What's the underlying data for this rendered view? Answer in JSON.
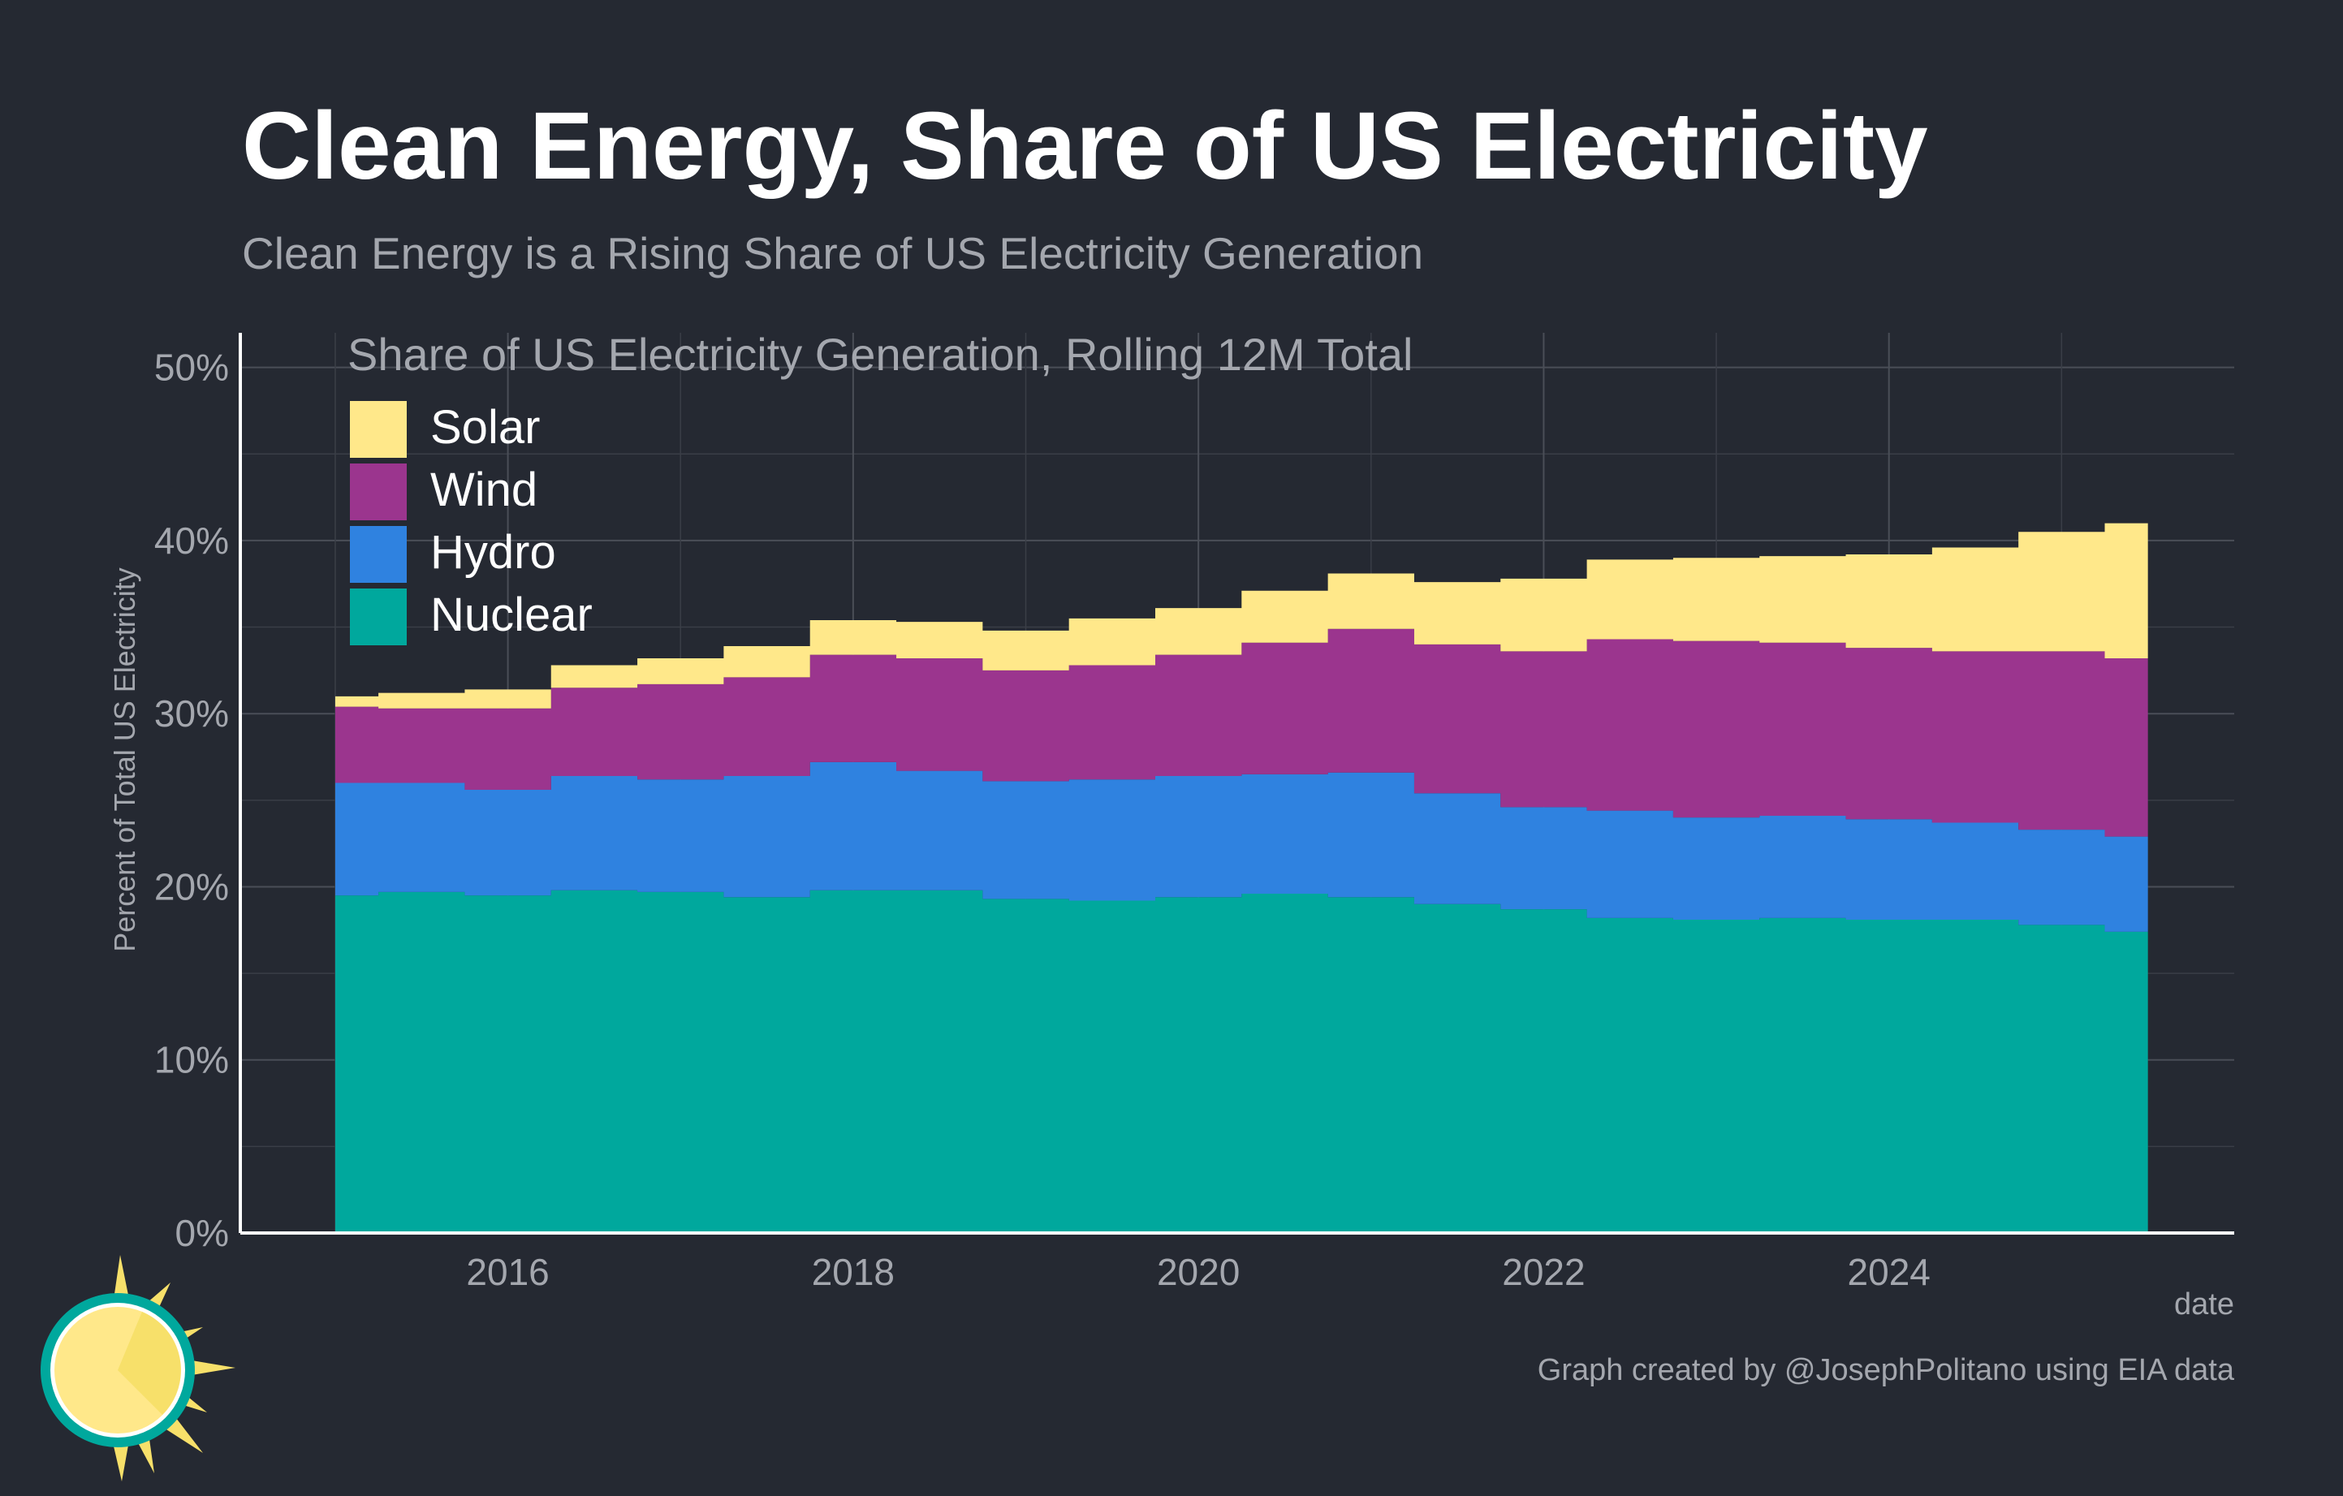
{
  "header": {
    "title": "Clean Energy, Share of US Electricity",
    "subtitle": "Clean Energy is a Rising Share of US Electricity Generation"
  },
  "footer": {
    "caption": "Graph created by @JosephPolitano using EIA data",
    "logo_icon": "sun-logo-icon"
  },
  "chart_data": {
    "type": "area",
    "stacked": true,
    "title": "Share of US Electricity Generation, Rolling 12M Total",
    "xlabel": "date",
    "ylabel": "Percent of Total US Electricity",
    "ylim": [
      0,
      52
    ],
    "xlim": [
      2014.45,
      2026.0
    ],
    "y_ticks": [
      0,
      10,
      20,
      30,
      40,
      50
    ],
    "y_tick_labels": [
      "0%",
      "10%",
      "20%",
      "30%",
      "40%",
      "50%"
    ],
    "x_ticks": [
      2016,
      2018,
      2020,
      2022,
      2024
    ],
    "x_tick_labels": [
      "2016",
      "2018",
      "2020",
      "2022",
      "2024"
    ],
    "grid": true,
    "legend_position": "top-left",
    "x": [
      2015.0,
      2015.5,
      2016.0,
      2016.5,
      2017.0,
      2017.5,
      2018.0,
      2018.5,
      2019.0,
      2019.5,
      2020.0,
      2020.5,
      2021.0,
      2021.5,
      2022.0,
      2022.5,
      2023.0,
      2023.5,
      2024.0,
      2024.5,
      2025.0,
      2025.5
    ],
    "series": [
      {
        "name": "Nuclear",
        "color": "#00a89d",
        "values": [
          19.5,
          19.7,
          19.5,
          19.8,
          19.7,
          19.4,
          19.8,
          19.8,
          19.3,
          19.2,
          19.4,
          19.6,
          19.4,
          19.0,
          18.7,
          18.2,
          18.1,
          18.2,
          18.1,
          18.1,
          17.8,
          17.4
        ]
      },
      {
        "name": "Hydro",
        "color": "#2f82e0",
        "values": [
          6.5,
          6.3,
          6.1,
          6.6,
          6.5,
          7.0,
          7.4,
          6.9,
          6.8,
          7.0,
          7.0,
          6.9,
          7.2,
          6.4,
          5.9,
          6.2,
          5.9,
          5.9,
          5.8,
          5.6,
          5.5,
          5.5
        ]
      },
      {
        "name": "Wind",
        "color": "#9b358e",
        "values": [
          4.4,
          4.3,
          4.7,
          5.1,
          5.5,
          5.7,
          6.2,
          6.5,
          6.4,
          6.6,
          7.0,
          7.6,
          8.3,
          8.6,
          9.0,
          9.9,
          10.2,
          10.0,
          9.9,
          9.9,
          10.3,
          10.3
        ]
      },
      {
        "name": "Solar",
        "color": "#ffe88a",
        "values": [
          0.6,
          0.9,
          1.1,
          1.3,
          1.5,
          1.8,
          2.0,
          2.1,
          2.3,
          2.7,
          2.7,
          3.0,
          3.2,
          3.6,
          4.2,
          4.6,
          4.8,
          5.0,
          5.4,
          6.0,
          6.9,
          7.8
        ]
      }
    ]
  }
}
